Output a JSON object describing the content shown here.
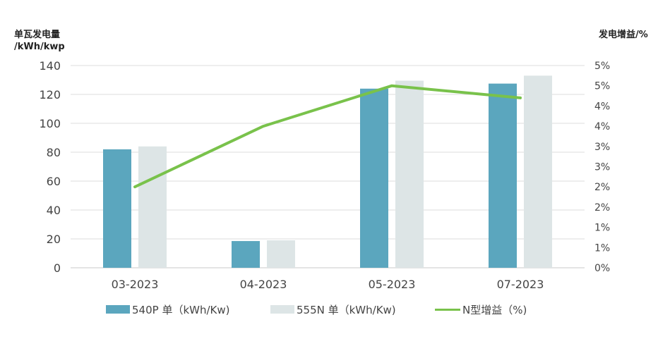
{
  "chart_data": {
    "type": "bar",
    "categories": [
      "03-2023",
      "04-2023",
      "05-2023",
      "07-2023"
    ],
    "series": [
      {
        "name": "540P 单（kWh/Kw)",
        "kind": "bar",
        "axis": "left",
        "color": "#5ba6be",
        "values": [
          82,
          18.5,
          124,
          127.5
        ]
      },
      {
        "name": "555N 单（kWh/Kw)",
        "kind": "bar",
        "axis": "left",
        "color": "#dde5e6",
        "values": [
          84,
          19,
          129.5,
          133
        ]
      },
      {
        "name": "N型增益（%)",
        "kind": "line",
        "axis": "right",
        "color": "#79c24b",
        "values": [
          2.0,
          3.5,
          4.5,
          4.2
        ]
      }
    ],
    "y_left": {
      "title_line1": "单瓦发电量",
      "title_line2": "/kWh/kwp",
      "ylim": [
        0,
        140
      ],
      "ticks": [
        "0",
        "20",
        "40",
        "60",
        "80",
        "100",
        "120",
        "140"
      ]
    },
    "y_right": {
      "title": "发电增益/%",
      "ylim": [
        0,
        5
      ],
      "ticks": [
        "0%",
        "1%",
        "1%",
        "2%",
        "2%",
        "3%",
        "3%",
        "4%",
        "4%",
        "5%",
        "5%"
      ]
    },
    "grid": true,
    "legend_position": "bottom"
  }
}
